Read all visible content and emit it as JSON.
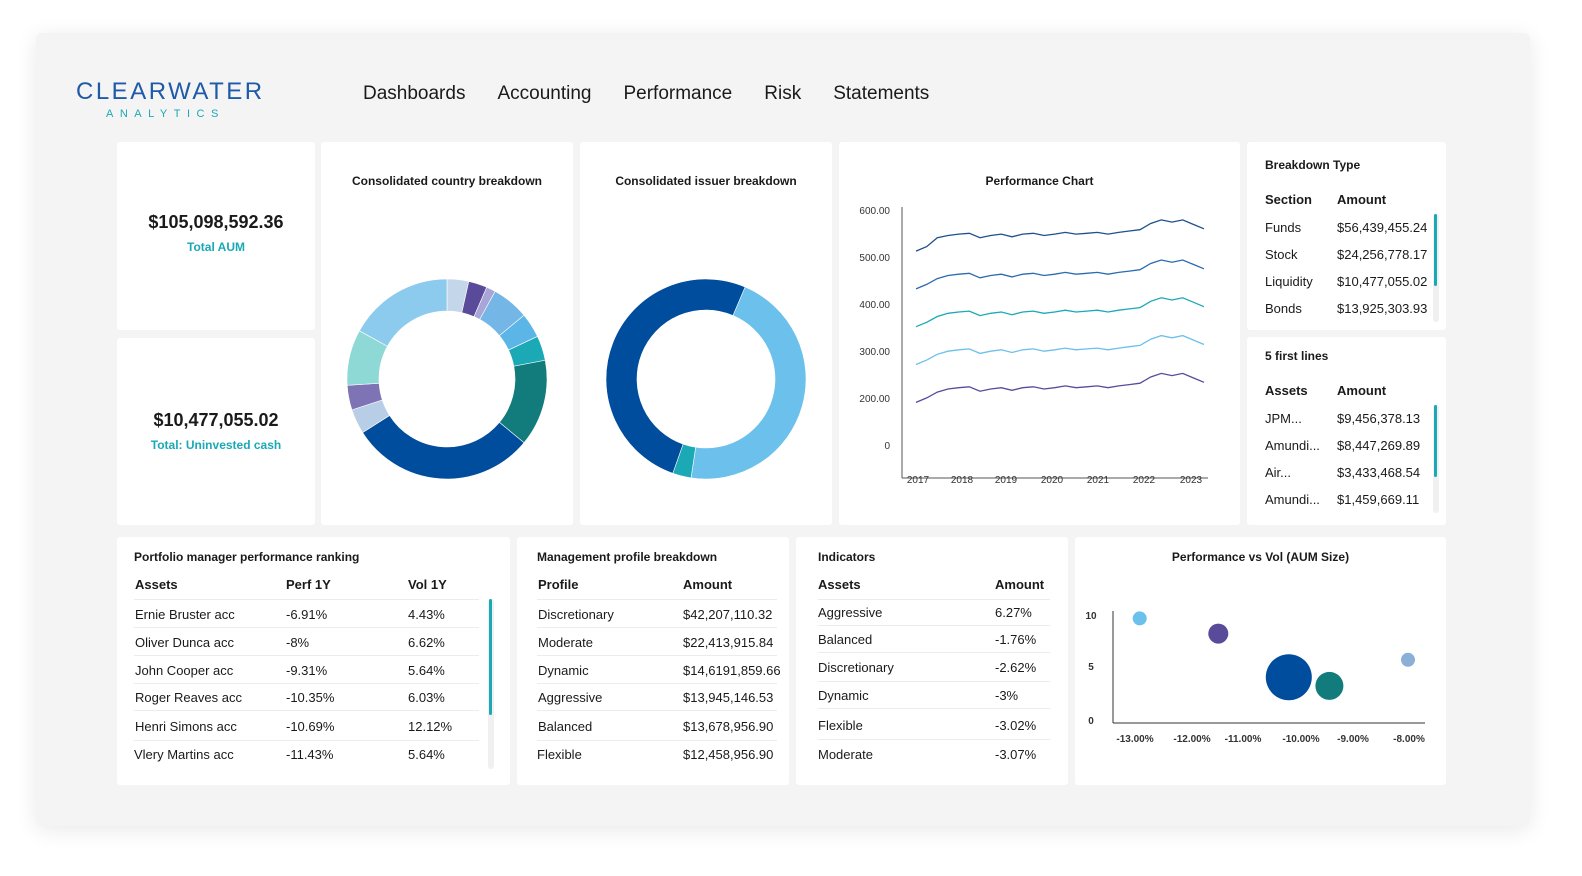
{
  "app": {
    "logo_main": "CLEARWATER",
    "logo_sub": "ANALYTICS"
  },
  "nav": {
    "items": [
      "Dashboards",
      "Accounting",
      "Performance",
      "Risk",
      "Statements"
    ]
  },
  "kpis": {
    "total_aum": {
      "value": "$105,098,592.36",
      "label": "Total AUM"
    },
    "uninvested": {
      "value": "$10,477,055.02",
      "label": "Total: Uninvested cash"
    }
  },
  "country_breakdown": {
    "title": "Consolidated country breakdown",
    "chart_data": {
      "type": "pie",
      "donut": true,
      "slices": [
        {
          "value": 3.5,
          "color": "#c3d6ea"
        },
        {
          "value": 3.0,
          "color": "#5a4a9a"
        },
        {
          "value": 1.5,
          "color": "#a9a5d6"
        },
        {
          "value": 6.0,
          "color": "#74b6e6"
        },
        {
          "value": 4.0,
          "color": "#5bb5e6"
        },
        {
          "value": 4.0,
          "color": "#1aa9b5"
        },
        {
          "value": 14.0,
          "color": "#127c7c"
        },
        {
          "value": 30.0,
          "color": "#004c9d"
        },
        {
          "value": 4.0,
          "color": "#b8cde6"
        },
        {
          "value": 4.0,
          "color": "#7e73b4"
        },
        {
          "value": 9.0,
          "color": "#8ed8d6"
        },
        {
          "value": 17.0,
          "color": "#8ccbee"
        }
      ]
    }
  },
  "issuer_breakdown": {
    "title": "Consolidated issuer breakdown",
    "chart_data": {
      "type": "pie",
      "donut": true,
      "slices": [
        {
          "value": 46,
          "color": "#6cc0ec"
        },
        {
          "value": 3,
          "color": "#1aa9b5"
        },
        {
          "value": 51,
          "color": "#004c9d"
        }
      ]
    }
  },
  "performance_chart": {
    "title": "Performance Chart",
    "chart_data": {
      "type": "line",
      "x_ticks": [
        "2017",
        "2018",
        "2019",
        "2020",
        "2021",
        "2022",
        "2023"
      ],
      "y_ticks": [
        "600.00",
        "500.00",
        "400.00",
        "300.00",
        "200.00",
        "0"
      ],
      "series": [
        {
          "color": "#1e4f8f",
          "values": [
            510,
            520,
            540,
            545,
            548,
            550,
            540,
            545,
            548,
            542,
            548,
            550,
            545,
            548,
            552,
            548,
            550,
            552,
            548,
            552,
            555,
            558,
            572,
            580,
            575,
            580,
            570,
            560
          ]
        },
        {
          "color": "#2a6bb0",
          "values": [
            425,
            435,
            448,
            455,
            458,
            460,
            450,
            455,
            458,
            452,
            458,
            460,
            455,
            458,
            462,
            458,
            460,
            462,
            458,
            462,
            465,
            468,
            482,
            490,
            485,
            490,
            480,
            470
          ]
        },
        {
          "color": "#1aa9b5",
          "values": [
            340,
            350,
            363,
            370,
            373,
            375,
            365,
            370,
            373,
            367,
            373,
            375,
            370,
            373,
            377,
            373,
            375,
            377,
            373,
            377,
            380,
            383,
            397,
            405,
            400,
            405,
            395,
            385
          ]
        },
        {
          "color": "#6cc0ec",
          "values": [
            255,
            265,
            278,
            285,
            288,
            290,
            280,
            285,
            288,
            282,
            288,
            290,
            285,
            288,
            292,
            288,
            290,
            292,
            288,
            292,
            295,
            298,
            312,
            320,
            315,
            320,
            310,
            300
          ]
        },
        {
          "color": "#5a4a9a",
          "values": [
            170,
            180,
            193,
            200,
            203,
            205,
            195,
            200,
            203,
            197,
            203,
            205,
            200,
            203,
            207,
            203,
            205,
            207,
            203,
            207,
            210,
            213,
            227,
            235,
            230,
            235,
            225,
            215
          ]
        }
      ],
      "ylim": [
        0,
        600
      ]
    }
  },
  "breakdown_type": {
    "title": "Breakdown Type",
    "headers": [
      "Section",
      "Amount"
    ],
    "rows": [
      [
        "Funds",
        "$56,439,455.24"
      ],
      [
        "Stock",
        "$24,256,778.17"
      ],
      [
        "Liquidity",
        "$10,477,055.02"
      ],
      [
        "Bonds",
        "$13,925,303.93"
      ]
    ]
  },
  "first_lines": {
    "title": "5 first lines",
    "headers": [
      "Assets",
      "Amount"
    ],
    "rows": [
      [
        "JPM...",
        "$9,456,378.13"
      ],
      [
        "Amundi...",
        "$8,447,269.89"
      ],
      [
        "Air...",
        "$3,433,468.54"
      ],
      [
        "Amundi...",
        "$1,459,669.11"
      ]
    ]
  },
  "pm_ranking": {
    "title": "Portfolio manager performance ranking",
    "headers": [
      "Assets",
      "Perf 1Y",
      "Vol 1Y"
    ],
    "rows": [
      [
        "Ernie Bruster acc",
        "-6.91%",
        "4.43%"
      ],
      [
        "Oliver Dunca acc",
        "-8%",
        "6.62%"
      ],
      [
        "John Cooper acc",
        "-9.31%",
        "5.64%"
      ],
      [
        "Roger Reaves acc",
        "-10.35%",
        "6.03%"
      ],
      [
        "Henri Simons acc",
        "-10.69%",
        "12.12%"
      ],
      [
        "Vlery Martins acc",
        "-11.43%",
        "5.64%"
      ]
    ]
  },
  "mgmt_profile": {
    "title": "Management profile breakdown",
    "headers": [
      "Profile",
      "Amount"
    ],
    "rows": [
      [
        "Discretionary",
        "$42,207,110.32"
      ],
      [
        "Moderate",
        "$22,413,915.84"
      ],
      [
        "Dynamic",
        "$14,6191,859.66"
      ],
      [
        "Aggressive",
        "$13,945,146.53"
      ],
      [
        "Balanced",
        "$13,678,956.90"
      ],
      [
        "Flexible",
        "$12,458,956.90"
      ]
    ]
  },
  "indicators": {
    "title": "Indicators",
    "headers": [
      "Assets",
      "Amount"
    ],
    "rows": [
      [
        "Aggressive",
        "6.27%"
      ],
      [
        "Balanced",
        "-1.76%"
      ],
      [
        "Discretionary",
        "-2.62%"
      ],
      [
        "Dynamic",
        "-3%"
      ],
      [
        "Flexible",
        "-3.02%"
      ],
      [
        "Moderate",
        "-3.07%"
      ]
    ]
  },
  "perf_vs_vol": {
    "title": "Performance vs Vol (AUM Size)",
    "chart_data": {
      "type": "scatter",
      "x_ticks": [
        "-13.00%",
        "-12.00%",
        "-11.00%",
        "-10.00%",
        "-9.00%",
        "-8.00%"
      ],
      "y_ticks": [
        "10",
        "5",
        "0"
      ],
      "xlim": [
        -13.5,
        -7.5
      ],
      "ylim": [
        0,
        11
      ],
      "points": [
        {
          "x": -12.95,
          "y": 9.6,
          "r": 7,
          "color": "#6cc0ec"
        },
        {
          "x": -11.5,
          "y": 8.2,
          "r": 10,
          "color": "#5a4a9a"
        },
        {
          "x": -10.2,
          "y": 4.2,
          "r": 23,
          "color": "#004c9d"
        },
        {
          "x": -9.45,
          "y": 3.4,
          "r": 14,
          "color": "#127c7c"
        },
        {
          "x": -8.0,
          "y": 5.8,
          "r": 7,
          "color": "#8ab0d8"
        }
      ]
    }
  }
}
